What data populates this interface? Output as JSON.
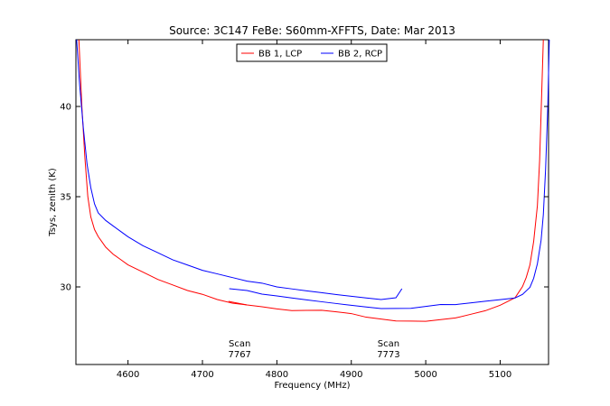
{
  "chart_data": {
    "type": "line",
    "title": "Source: 3C147 FeBe: S60mm-XFFTS, Date: Mar 2013",
    "xlabel": "Frequency (MHz)",
    "ylabel": "Tsys, zenith (K)",
    "xlim": [
      4530,
      5165
    ],
    "ylim": [
      25.7,
      43.7
    ],
    "xticks": [
      4600,
      4700,
      4800,
      4900,
      5000,
      5100
    ],
    "yticks": [
      30,
      35,
      40
    ],
    "grid": false,
    "legend": "top-center",
    "series": [
      {
        "name": "BB 1, LCP",
        "color": "#ff0000",
        "segments": [
          {
            "x": [
              4534,
              4538,
              4542,
              4546,
              4550,
              4555,
              4560,
              4565,
              4570,
              4580,
              4590,
              4600,
              4620,
              4640,
              4660,
              4680,
              4700,
              4720,
              4740,
              4760
            ],
            "y": [
              43.7,
              40.0,
              37.2,
              35.0,
              33.9,
              33.2,
              32.8,
              32.5,
              32.2,
              31.8,
              31.5,
              31.2,
              30.8,
              30.4,
              30.1,
              29.8,
              29.6,
              29.3,
              29.1,
              29.0
            ]
          },
          {
            "x": [
              4735,
              4760,
              4780,
              4800,
              4820,
              4840,
              4860,
              4880,
              4900,
              4920,
              4940,
              4960,
              4980,
              5000,
              5020,
              5040,
              5060,
              5080,
              5100,
              5110,
              5120,
              5125,
              5130,
              5135,
              5140,
              5145,
              5150,
              5153,
              5156,
              5158
            ],
            "y": [
              29.2,
              29.0,
              28.9,
              28.8,
              28.7,
              28.7,
              28.7,
              28.6,
              28.5,
              28.3,
              28.2,
              28.1,
              28.1,
              28.1,
              28.2,
              28.3,
              28.5,
              28.7,
              29.0,
              29.2,
              29.4,
              29.7,
              30.0,
              30.5,
              31.2,
              32.5,
              34.5,
              37.0,
              41.0,
              43.7
            ]
          }
        ]
      },
      {
        "name": "BB 2, RCP",
        "color": "#0000ff",
        "segments": [
          {
            "x": [
              4531,
              4535,
              4540,
              4545,
              4550,
              4555,
              4560,
              4570,
              4580,
              4590,
              4600,
              4620,
              4640,
              4660,
              4680,
              4700,
              4720,
              4740,
              4760,
              4780,
              4800,
              4820,
              4840,
              4860,
              4880,
              4900,
              4920,
              4940,
              4960,
              4968
            ],
            "y": [
              43.7,
              41.2,
              38.8,
              36.8,
              35.5,
              34.6,
              34.1,
              33.7,
              33.4,
              33.1,
              32.8,
              32.3,
              31.9,
              31.5,
              31.2,
              30.9,
              30.7,
              30.5,
              30.3,
              30.2,
              30.0,
              29.9,
              29.8,
              29.7,
              29.6,
              29.5,
              29.4,
              29.3,
              29.4,
              29.9
            ]
          },
          {
            "x": [
              4736,
              4760,
              4780,
              4800,
              4820,
              4840,
              4860,
              4880,
              4900,
              4920,
              4940,
              4960,
              4980,
              5000,
              5020,
              5040,
              5060,
              5080,
              5100,
              5120,
              5130,
              5140,
              5145,
              5150,
              5155,
              5158,
              5161,
              5164,
              5166
            ],
            "y": [
              29.9,
              29.8,
              29.6,
              29.5,
              29.4,
              29.3,
              29.2,
              29.1,
              29.0,
              28.9,
              28.8,
              28.8,
              28.8,
              28.9,
              29.0,
              29.0,
              29.1,
              29.2,
              29.3,
              29.4,
              29.6,
              30.0,
              30.5,
              31.3,
              32.6,
              34.0,
              36.5,
              40.0,
              43.7
            ]
          }
        ]
      }
    ],
    "annotations": [
      {
        "line1": "Scan",
        "line2": "7767",
        "x": 4750
      },
      {
        "line1": "Scan",
        "line2": "7773",
        "x": 4950
      }
    ]
  }
}
